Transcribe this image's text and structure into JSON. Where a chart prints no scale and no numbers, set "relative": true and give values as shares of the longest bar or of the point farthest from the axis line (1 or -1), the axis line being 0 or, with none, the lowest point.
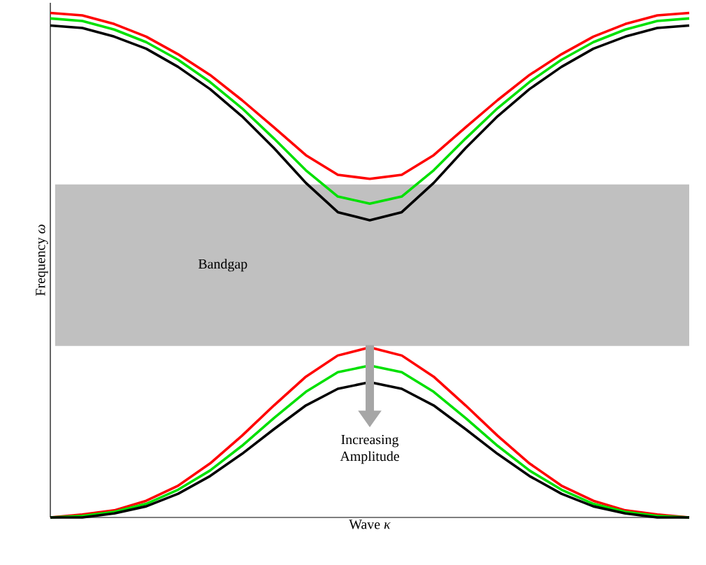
{
  "chart_data": {
    "type": "line",
    "relative": true,
    "marker": "none",
    "xlabel": "Wave *κ*",
    "ylabel": "Frequency *ω*",
    "categories": [
      null,
      null,
      null,
      null,
      null,
      null,
      null,
      null,
      null,
      null,
      null,
      null,
      null,
      null,
      null,
      null,
      null,
      null,
      null,
      null,
      null
    ],
    "series": [
      {
        "color": "#ff0000",
        "values": [
          1.0,
          0.995,
          0.978,
          0.953,
          0.918,
          0.877,
          0.827,
          0.773,
          0.718,
          0.679,
          0.671,
          0.679,
          0.718,
          0.773,
          0.827,
          0.877,
          0.918,
          0.953,
          0.978,
          0.995,
          1.0
        ]
      },
      {
        "color": "#00e000",
        "values": [
          0.989,
          0.984,
          0.967,
          0.942,
          0.907,
          0.863,
          0.811,
          0.751,
          0.688,
          0.636,
          0.622,
          0.636,
          0.688,
          0.751,
          0.811,
          0.863,
          0.907,
          0.942,
          0.967,
          0.984,
          0.989
        ]
      },
      {
        "color": "#000000",
        "values": [
          0.975,
          0.97,
          0.953,
          0.929,
          0.893,
          0.849,
          0.795,
          0.732,
          0.663,
          0.605,
          0.589,
          0.605,
          0.663,
          0.732,
          0.795,
          0.849,
          0.893,
          0.929,
          0.953,
          0.97,
          0.975
        ]
      },
      {
        "color": "#ff0000",
        "values": [
          0,
          0.006,
          0.014,
          0.033,
          0.063,
          0.107,
          0.162,
          0.222,
          0.279,
          0.321,
          0.337,
          0.321,
          0.279,
          0.222,
          0.162,
          0.107,
          0.063,
          0.033,
          0.014,
          0.006,
          0
        ]
      },
      {
        "color": "#00e000",
        "values": [
          0,
          0.003,
          0.011,
          0.027,
          0.055,
          0.093,
          0.142,
          0.197,
          0.249,
          0.288,
          0.301,
          0.288,
          0.249,
          0.197,
          0.142,
          0.093,
          0.055,
          0.027,
          0.011,
          0.003,
          0
        ]
      },
      {
        "color": "#000000",
        "values": [
          0,
          0,
          0.008,
          0.022,
          0.047,
          0.082,
          0.126,
          0.175,
          0.222,
          0.255,
          0.268,
          0.255,
          0.222,
          0.175,
          0.126,
          0.082,
          0.047,
          0.022,
          0.008,
          0,
          0
        ]
      }
    ],
    "bands": [
      {
        "axis": "y",
        "from": 0.34,
        "to": 0.66,
        "label": "Bandgap",
        "color": "#c0c0c0"
      }
    ],
    "annotations": [
      "Increasing Amplitude"
    ]
  }
}
